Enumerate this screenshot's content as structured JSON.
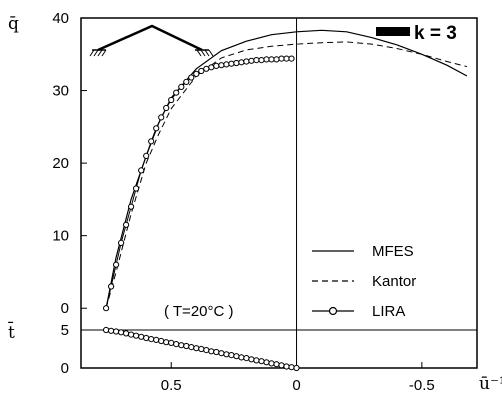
{
  "chart_data": {
    "type": "line",
    "title": "",
    "panel_label": "k = 3",
    "annotation": "( T=20°C )",
    "upper_panel": {
      "ylabel": "q̄",
      "ylim": [
        -3,
        40
      ],
      "yticks": [
        0,
        10,
        20,
        30,
        40
      ],
      "series": [
        {
          "name": "MFES",
          "style": "solid",
          "x": [
            0.76,
            0.72,
            0.66,
            0.6,
            0.55,
            0.5,
            0.4,
            0.3,
            0.2,
            0.1,
            0.0,
            -0.1,
            -0.2,
            -0.3,
            -0.4,
            -0.5,
            -0.6,
            -0.68
          ],
          "y": [
            0,
            7,
            15,
            21,
            25.5,
            29,
            33,
            35.5,
            36.8,
            37.7,
            38.1,
            38.3,
            38.1,
            37.3,
            36.3,
            35,
            33.5,
            32
          ]
        },
        {
          "name": "Kantor",
          "style": "dashed",
          "x": [
            0.76,
            0.72,
            0.66,
            0.6,
            0.55,
            0.5,
            0.4,
            0.3,
            0.2,
            0.1,
            0.0,
            -0.1,
            -0.2,
            -0.3,
            -0.4,
            -0.5,
            -0.6,
            -0.68
          ],
          "y": [
            0,
            5,
            13,
            20,
            24,
            27.5,
            32,
            34.5,
            35.6,
            36.1,
            36.4,
            36.6,
            36.7,
            36.4,
            35.8,
            35,
            34,
            33.3
          ]
        },
        {
          "name": "LIRA",
          "style": "solid-circles",
          "x": [
            0.76,
            0.74,
            0.72,
            0.7,
            0.68,
            0.66,
            0.64,
            0.62,
            0.6,
            0.58,
            0.56,
            0.54,
            0.52,
            0.5,
            0.48,
            0.46,
            0.44,
            0.42,
            0.4,
            0.38,
            0.36,
            0.34,
            0.32,
            0.3,
            0.28,
            0.26,
            0.24,
            0.22,
            0.2,
            0.18,
            0.16,
            0.14,
            0.12,
            0.1,
            0.08,
            0.06,
            0.04,
            0.02
          ],
          "y": [
            0,
            3,
            6,
            9,
            11.5,
            14,
            16.5,
            19,
            21,
            23,
            24.8,
            26.3,
            27.6,
            28.7,
            29.7,
            30.5,
            31.2,
            31.8,
            32.3,
            32.7,
            33.0,
            33.2,
            33.4,
            33.5,
            33.6,
            33.7,
            33.8,
            33.9,
            34.0,
            34.1,
            34.2,
            34.2,
            34.3,
            34.3,
            34.3,
            34.4,
            34.4,
            34.4
          ]
        }
      ]
    },
    "lower_panel": {
      "ylabel": "t̄",
      "ylim": [
        0,
        5
      ],
      "yticks": [
        0,
        5
      ],
      "series": [
        {
          "name": "LIRA",
          "style": "solid-circles",
          "x": [
            0.76,
            0.74,
            0.72,
            0.7,
            0.68,
            0.66,
            0.64,
            0.62,
            0.6,
            0.58,
            0.56,
            0.54,
            0.52,
            0.5,
            0.48,
            0.46,
            0.44,
            0.42,
            0.4,
            0.38,
            0.36,
            0.34,
            0.32,
            0.3,
            0.28,
            0.26,
            0.24,
            0.22,
            0.2,
            0.18,
            0.16,
            0.14,
            0.12,
            0.1,
            0.08,
            0.06,
            0.04,
            0.02,
            0.0
          ],
          "y": [
            5,
            4.9,
            4.8,
            4.7,
            4.55,
            4.4,
            4.25,
            4.1,
            3.95,
            3.8,
            3.7,
            3.55,
            3.4,
            3.3,
            3.15,
            3.0,
            2.9,
            2.75,
            2.6,
            2.5,
            2.35,
            2.2,
            2.1,
            1.95,
            1.8,
            1.7,
            1.55,
            1.4,
            1.3,
            1.15,
            1.0,
            0.9,
            0.75,
            0.6,
            0.5,
            0.35,
            0.2,
            0.1,
            0.0
          ]
        }
      ]
    },
    "xlabel": "ū⁻¹",
    "xlim": [
      0.86,
      -0.72
    ],
    "xticks": [
      0.5,
      0,
      -0.5
    ],
    "xtick_labels": [
      "0.5",
      "0",
      "-0.5"
    ],
    "reference_x": 0,
    "legend": {
      "placement": "bottom-right",
      "entries": [
        "MFES",
        "Kantor",
        "LIRA"
      ]
    },
    "grid": false
  }
}
